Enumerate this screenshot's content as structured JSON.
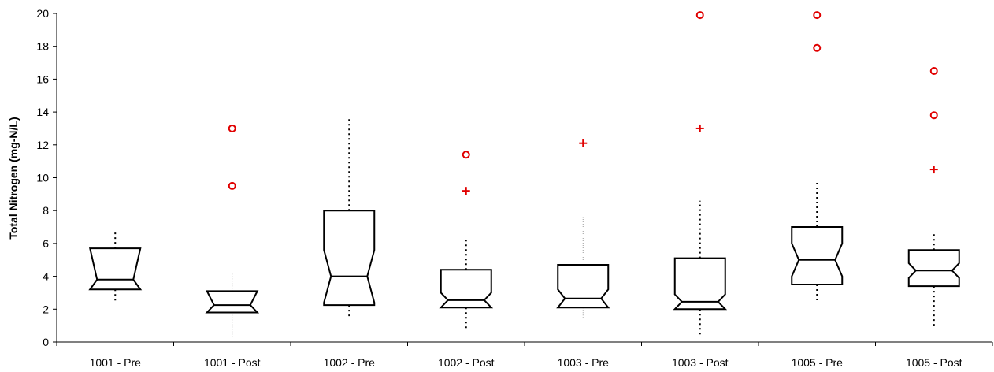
{
  "chart_data": {
    "type": "boxplot",
    "ylabel": "Total Nitrogen (mg-N/L)",
    "xlabel": "",
    "ylim": [
      0,
      20
    ],
    "yticks": [
      0,
      2,
      4,
      6,
      8,
      10,
      12,
      14,
      16,
      18,
      20
    ],
    "notched": true,
    "grid": false,
    "legend": "none",
    "colors": {
      "box": "#000000",
      "outlier": "#e00000",
      "whisker": "#000000"
    },
    "categories": [
      "1001 - Pre",
      "1001 - Post",
      "1002 - Pre",
      "1002 - Post",
      "1003 - Pre",
      "1003 - Post",
      "1005 - Pre",
      "1005 - Post"
    ],
    "boxes": [
      {
        "label": "1001 - Pre",
        "whisker_low": 2.4,
        "q1": 3.2,
        "median": 3.8,
        "q3": 5.7,
        "whisker_high": 6.8,
        "notch_low": 3.2,
        "notch_high": 5.7,
        "mild_outliers": [],
        "extreme_outliers": [],
        "whisker_style": "dotted"
      },
      {
        "label": "1001 - Post",
        "whisker_low": 0.3,
        "q1": 1.8,
        "median": 2.25,
        "q3": 3.1,
        "whisker_high": 4.2,
        "notch_low": 1.8,
        "notch_high": 3.1,
        "mild_outliers": [],
        "extreme_outliers": [
          13.0,
          9.5
        ],
        "whisker_style": "faint"
      },
      {
        "label": "1002 - Pre",
        "whisker_low": 1.5,
        "q1": 2.25,
        "median": 4.0,
        "q3": 8.0,
        "whisker_high": 13.6,
        "notch_low": 2.4,
        "notch_high": 5.6,
        "mild_outliers": [],
        "extreme_outliers": [],
        "whisker_style": "dotted"
      },
      {
        "label": "1002 - Post",
        "whisker_low": 0.8,
        "q1": 2.1,
        "median": 2.55,
        "q3": 4.4,
        "whisker_high": 6.2,
        "notch_low": 2.1,
        "notch_high": 3.0,
        "mild_outliers": [
          9.2
        ],
        "extreme_outliers": [
          11.4
        ],
        "whisker_style": "dotted"
      },
      {
        "label": "1003 - Pre",
        "whisker_low": 1.4,
        "q1": 2.1,
        "median": 2.65,
        "q3": 4.7,
        "whisker_high": 7.6,
        "notch_low": 2.1,
        "notch_high": 3.2,
        "mild_outliers": [
          12.1
        ],
        "extreme_outliers": [],
        "whisker_style": "faint"
      },
      {
        "label": "1003 - Post",
        "whisker_low": 0.4,
        "q1": 2.0,
        "median": 2.45,
        "q3": 5.1,
        "whisker_high": 8.6,
        "notch_low": 2.0,
        "notch_high": 2.9,
        "mild_outliers": [
          13.0
        ],
        "extreme_outliers": [
          19.9
        ],
        "whisker_style": "dotted"
      },
      {
        "label": "1005 - Pre",
        "whisker_low": 2.5,
        "q1": 3.5,
        "median": 5.0,
        "q3": 7.0,
        "whisker_high": 9.8,
        "notch_low": 4.0,
        "notch_high": 6.0,
        "mild_outliers": [],
        "extreme_outliers": [
          19.9,
          17.9
        ],
        "whisker_style": "dotted"
      },
      {
        "label": "1005 - Post",
        "whisker_low": 1.0,
        "q1": 3.4,
        "median": 4.35,
        "q3": 5.6,
        "whisker_high": 6.6,
        "notch_low": 3.9,
        "notch_high": 4.8,
        "mild_outliers": [
          10.5
        ],
        "extreme_outliers": [
          16.5,
          13.8
        ],
        "whisker_style": "dotted"
      }
    ]
  }
}
